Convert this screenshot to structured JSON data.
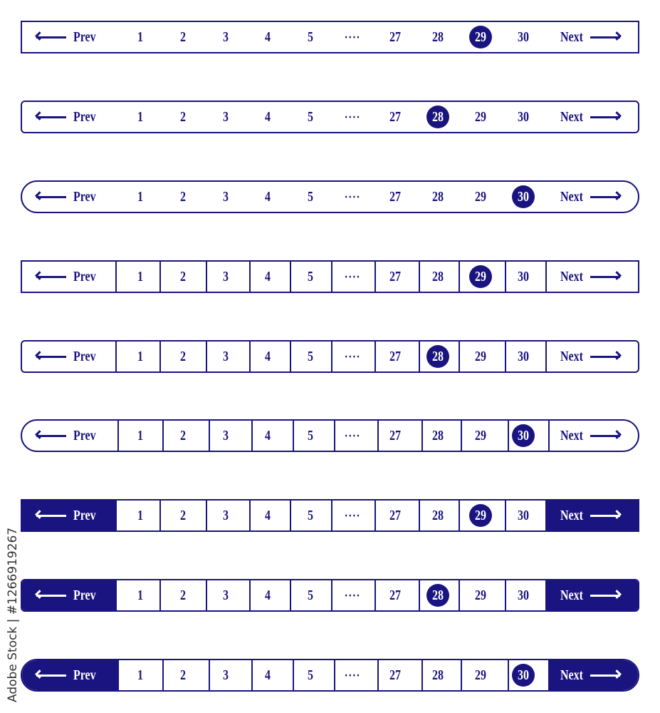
{
  "prev_label": "Prev",
  "next_label": "Next",
  "pages": [
    "1",
    "2",
    "3",
    "4",
    "5",
    "····",
    "27",
    "28",
    "29",
    "30"
  ],
  "accent_color": "#1a1480",
  "icons": {
    "prev": "arrow-left-icon",
    "next": "arrow-right-icon"
  },
  "variants": [
    {
      "shape": "square",
      "dividers": false,
      "filled_ends": false,
      "active": "29"
    },
    {
      "shape": "rounded",
      "dividers": false,
      "filled_ends": false,
      "active": "28"
    },
    {
      "shape": "pill",
      "dividers": false,
      "filled_ends": false,
      "active": "30"
    },
    {
      "shape": "square",
      "dividers": true,
      "filled_ends": false,
      "active": "29"
    },
    {
      "shape": "rounded",
      "dividers": true,
      "filled_ends": false,
      "active": "28"
    },
    {
      "shape": "pill",
      "dividers": true,
      "filled_ends": false,
      "active": "30"
    },
    {
      "shape": "square",
      "dividers": true,
      "filled_ends": true,
      "active": "29"
    },
    {
      "shape": "rounded",
      "dividers": true,
      "filled_ends": true,
      "active": "28"
    },
    {
      "shape": "pill",
      "dividers": true,
      "filled_ends": true,
      "active": "30"
    }
  ],
  "watermark": "Adobe Stock | #1266919267"
}
